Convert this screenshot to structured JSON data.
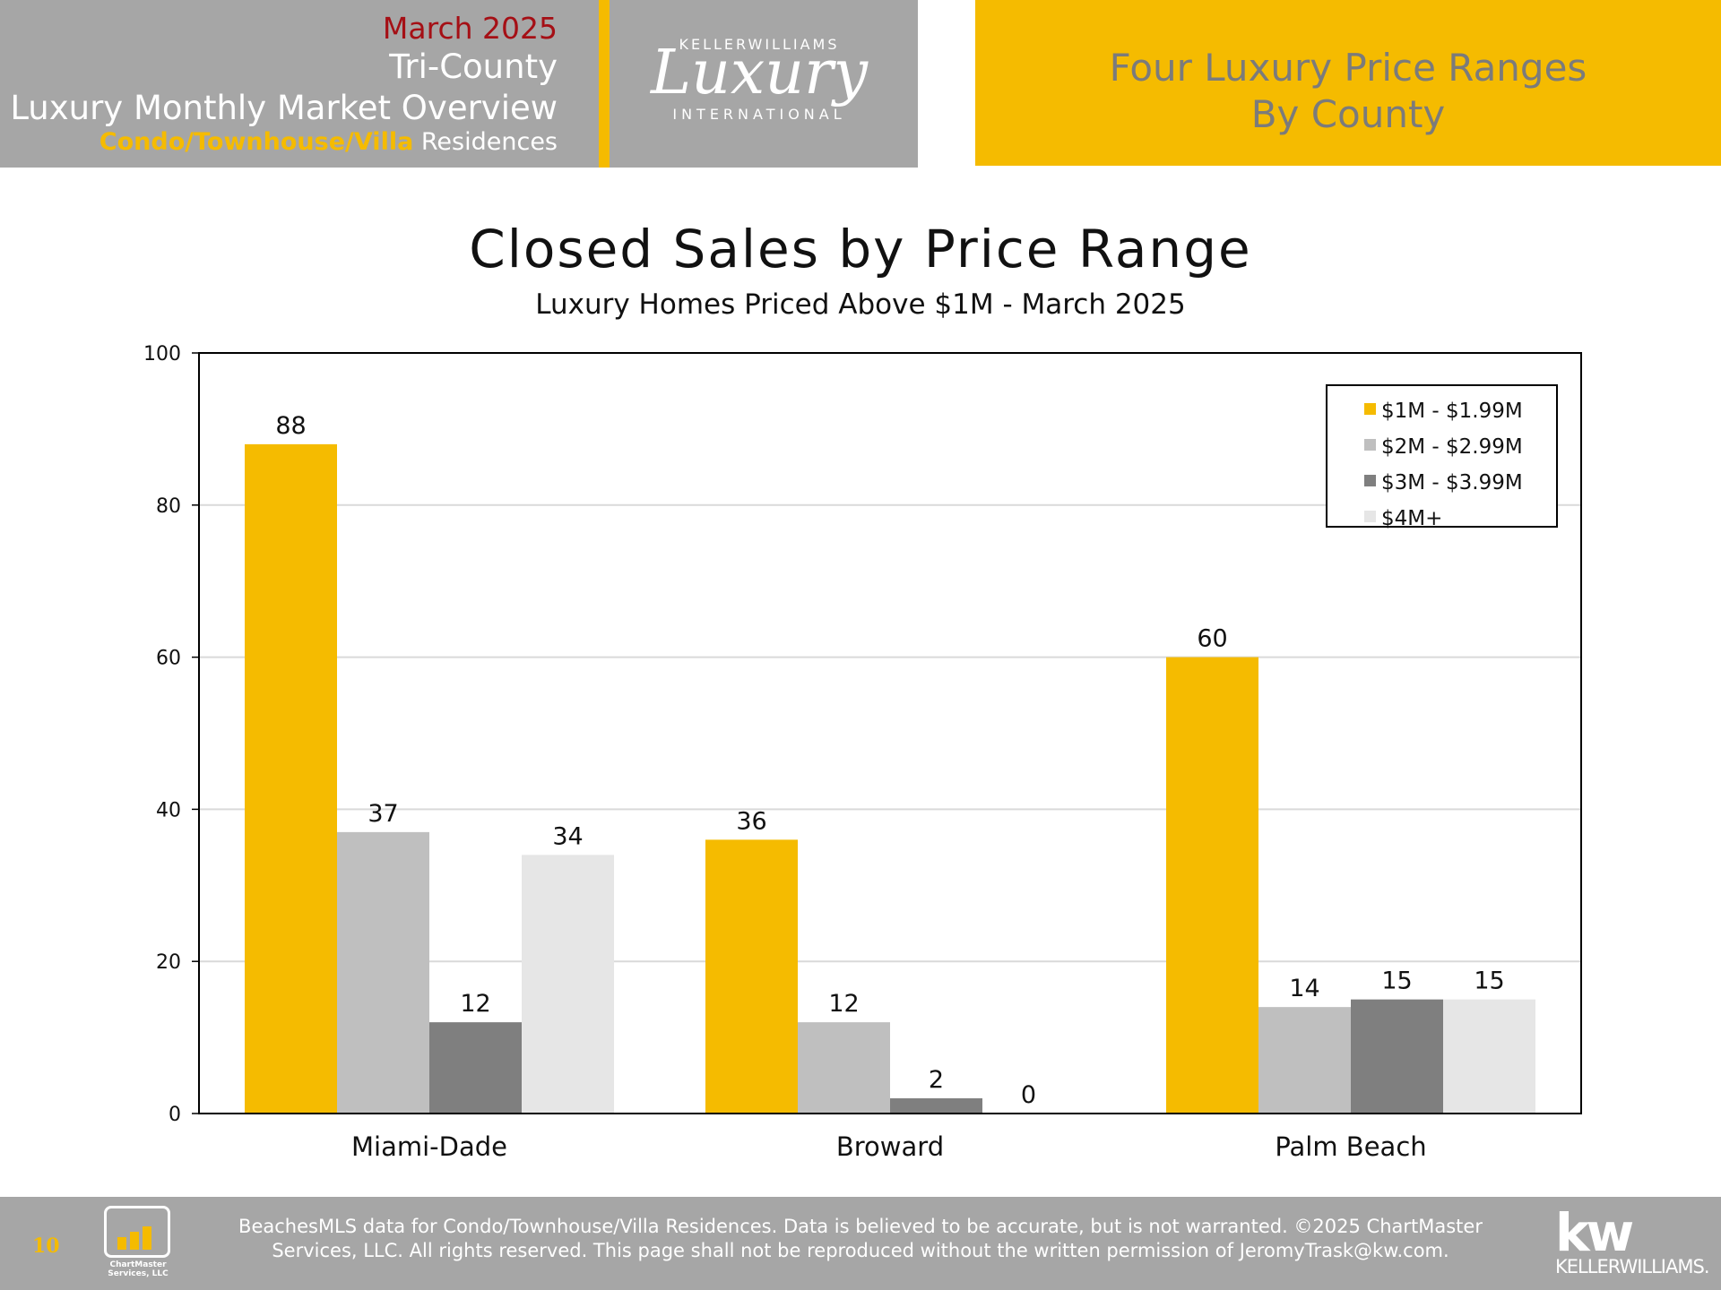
{
  "header": {
    "date": "March 2025",
    "region": "Tri-County",
    "overview": "Luxury Monthly Market Overview",
    "type_accent": "Condo/Townhouse/Villa",
    "type_rest": " Residences",
    "right_title_line1": "Four Luxury Price Ranges",
    "right_title_line2": "By County"
  },
  "logo": {
    "brand": "KELLERWILLIAMS",
    "script": "Luxury",
    "sub": "INTERNATIONAL"
  },
  "colors": {
    "gold": "#f5bb00",
    "header_gray": "#a6a6a6",
    "date_red": "#a50f15"
  },
  "chart_data": {
    "type": "bar",
    "title": "Closed Sales by Price Range",
    "subtitle": "Luxury Homes Priced Above $1M - March 2025",
    "categories": [
      "Miami-Dade",
      "Broward",
      "Palm Beach"
    ],
    "series": [
      {
        "name": "$1M - $1.99M",
        "color": "#f5bb00",
        "values": [
          88,
          36,
          60
        ]
      },
      {
        "name": "$2M - $2.99M",
        "color": "#bfbfbf",
        "values": [
          37,
          12,
          14
        ]
      },
      {
        "name": "$3M - $3.99M",
        "color": "#7f7f7f",
        "values": [
          12,
          2,
          15
        ]
      },
      {
        "name": "$4M+",
        "color": "#e6e6e6",
        "values": [
          34,
          0,
          15
        ]
      }
    ],
    "ylim": [
      0,
      100
    ],
    "yticks": [
      0,
      20,
      40,
      60,
      80,
      100
    ],
    "grid": true,
    "legend": "top-right",
    "data_labels": true
  },
  "footer": {
    "page_number": "10",
    "chartmaster_label": "ChartMaster Services, LLC",
    "disclaimer_line1": "BeachesMLS data for Condo/Townhouse/Villa Residences.  Data is believed to be accurate, but is not warranted.   ©2025  ChartMaster",
    "disclaimer_line2": "Services, LLC.  All rights reserved. This page shall not be reproduced without the written permission of JeromyTrask@kw.com.",
    "kw_mark": "kw",
    "kw_word": "KELLERWILLIAMS."
  }
}
